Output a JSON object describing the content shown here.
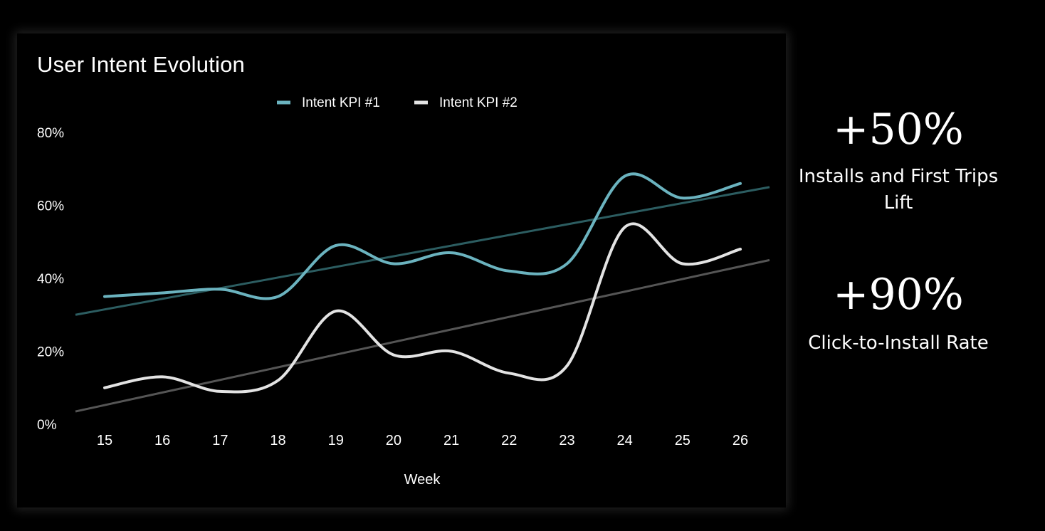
{
  "chart_data": {
    "type": "line",
    "title": "User Intent Evolution",
    "xlabel": "Week",
    "ylabel": "",
    "categories": [
      "15",
      "16",
      "17",
      "18",
      "19",
      "20",
      "21",
      "22",
      "23",
      "24",
      "25",
      "26"
    ],
    "ylim": [
      0,
      80
    ],
    "yticks": [
      0,
      20,
      40,
      60,
      80
    ],
    "ytick_labels": [
      "0%",
      "20%",
      "40%",
      "60%",
      "80%"
    ],
    "legend_position": "top-center",
    "grid": false,
    "series": [
      {
        "name": "Intent KPI #1",
        "color": "#6bb3bf",
        "values": [
          35,
          36,
          37,
          35,
          49,
          44,
          47,
          42,
          44,
          68,
          62,
          66
        ]
      },
      {
        "name": "Intent KPI #2",
        "color": "#e3e3e3",
        "values": [
          10,
          13,
          9,
          12,
          31,
          19,
          20,
          14,
          16,
          54,
          44,
          48
        ]
      }
    ],
    "trendlines": [
      {
        "series": "Intent KPI #1",
        "color": "#2c5d61",
        "start": 30,
        "end": 65
      },
      {
        "series": "Intent KPI #2",
        "color": "#555555",
        "start": 3.5,
        "end": 45
      }
    ]
  },
  "stats": [
    {
      "value": "+50%",
      "label": "Installs and First Trips Lift"
    },
    {
      "value": "+90%",
      "label": "Click-to-Install Rate"
    }
  ]
}
